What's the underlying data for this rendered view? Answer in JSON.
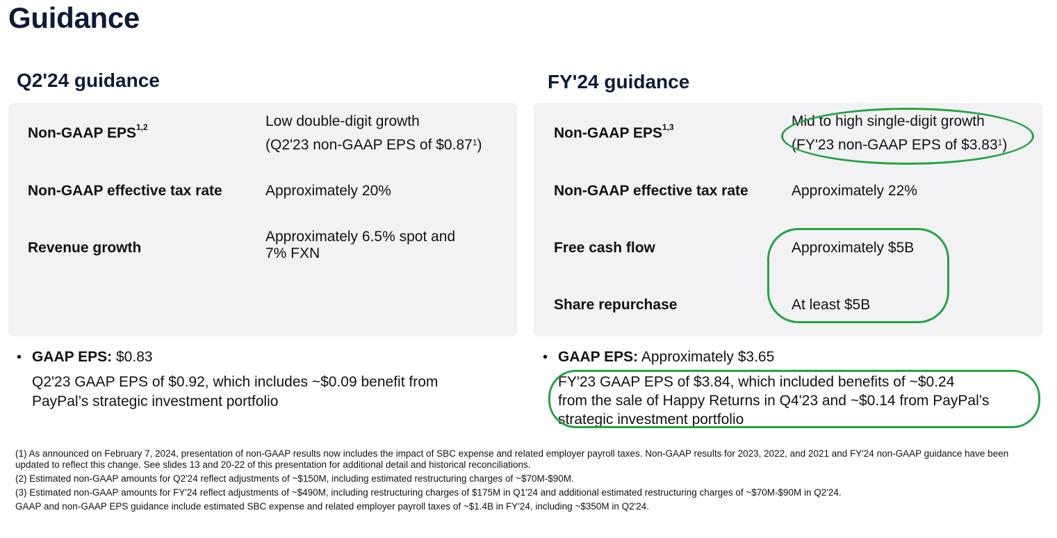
{
  "title": "Guidance",
  "left": {
    "heading": "Q2'24 guidance",
    "rows": [
      {
        "label": "Non-GAAP EPS",
        "label_sup": "1,2",
        "value_line1": "Low double-digit growth",
        "value_line2_pre": "(Q2'23 non-GAAP EPS of $0.87",
        "value_line2_sup": "1",
        "value_line2_post": ")"
      },
      {
        "label": "Non-GAAP effective tax rate",
        "value": "Approximately 20%"
      },
      {
        "label": "Revenue growth",
        "value_line1": "Approximately 6.5% spot and",
        "value_line2": "7% FXN"
      }
    ],
    "gaap_label": "GAAP EPS:",
    "gaap_value": "$0.83",
    "gaap_note_line1": "Q2'23 GAAP EPS of $0.92, which includes ~$0.09 benefit from",
    "gaap_note_line2": "PayPal’s strategic investment portfolio"
  },
  "right": {
    "heading": "FY'24 guidance",
    "rows": [
      {
        "label": "Non-GAAP EPS",
        "label_sup": "1,3",
        "value_line1": "Mid to high single-digit growth",
        "value_line2_pre": "(FY'23 non-GAAP EPS of $3.83",
        "value_line2_sup": "1",
        "value_line2_post": ")"
      },
      {
        "label": "Non-GAAP effective tax rate",
        "value": "Approximately 22%"
      },
      {
        "label": "Free cash flow",
        "value": "Approximately $5B"
      },
      {
        "label": "Share repurchase",
        "value": "At least $5B"
      }
    ],
    "gaap_label": "GAAP EPS:",
    "gaap_value": "Approximately $3.65",
    "gaap_note_line1": "FY'23 GAAP EPS of $3.84, which included benefits of ~$0.24",
    "gaap_note_line2": "from the sale of Happy Returns in Q4'23 and ~$0.14 from PayPal’s",
    "gaap_note_line3": "strategic investment portfolio"
  },
  "footnotes": [
    "(1) As announced on February 7, 2024, presentation of non-GAAP results now includes the impact of SBC expense and related employer payroll taxes. Non-GAAP results for 2023, 2022, and 2021 and FY'24 non-GAAP guidance have been updated to reflect this change. See slides 13 and 20-22 of this presentation for additional detail and historical reconciliations.",
    "(2) Estimated non-GAAP amounts for Q2'24 reflect adjustments of ~$150M, including estimated restructuring charges of ~$70M-$90M.",
    "(3) Estimated non-GAAP amounts for FY'24 reflect adjustments of ~$490M, including restructuring charges of $175M in Q1'24 and additional estimated restructuring charges of ~$70M-$90M in Q2'24.",
    "GAAP and non-GAAP EPS guidance include estimated SBC expense and related employer payroll taxes of ~$1.4B in FY'24, including ~$350M in Q2'24."
  ],
  "colors": {
    "highlight_oval": "#21a540",
    "heading": "#0e1a3a",
    "panel_bg": "#f2f2f4"
  }
}
